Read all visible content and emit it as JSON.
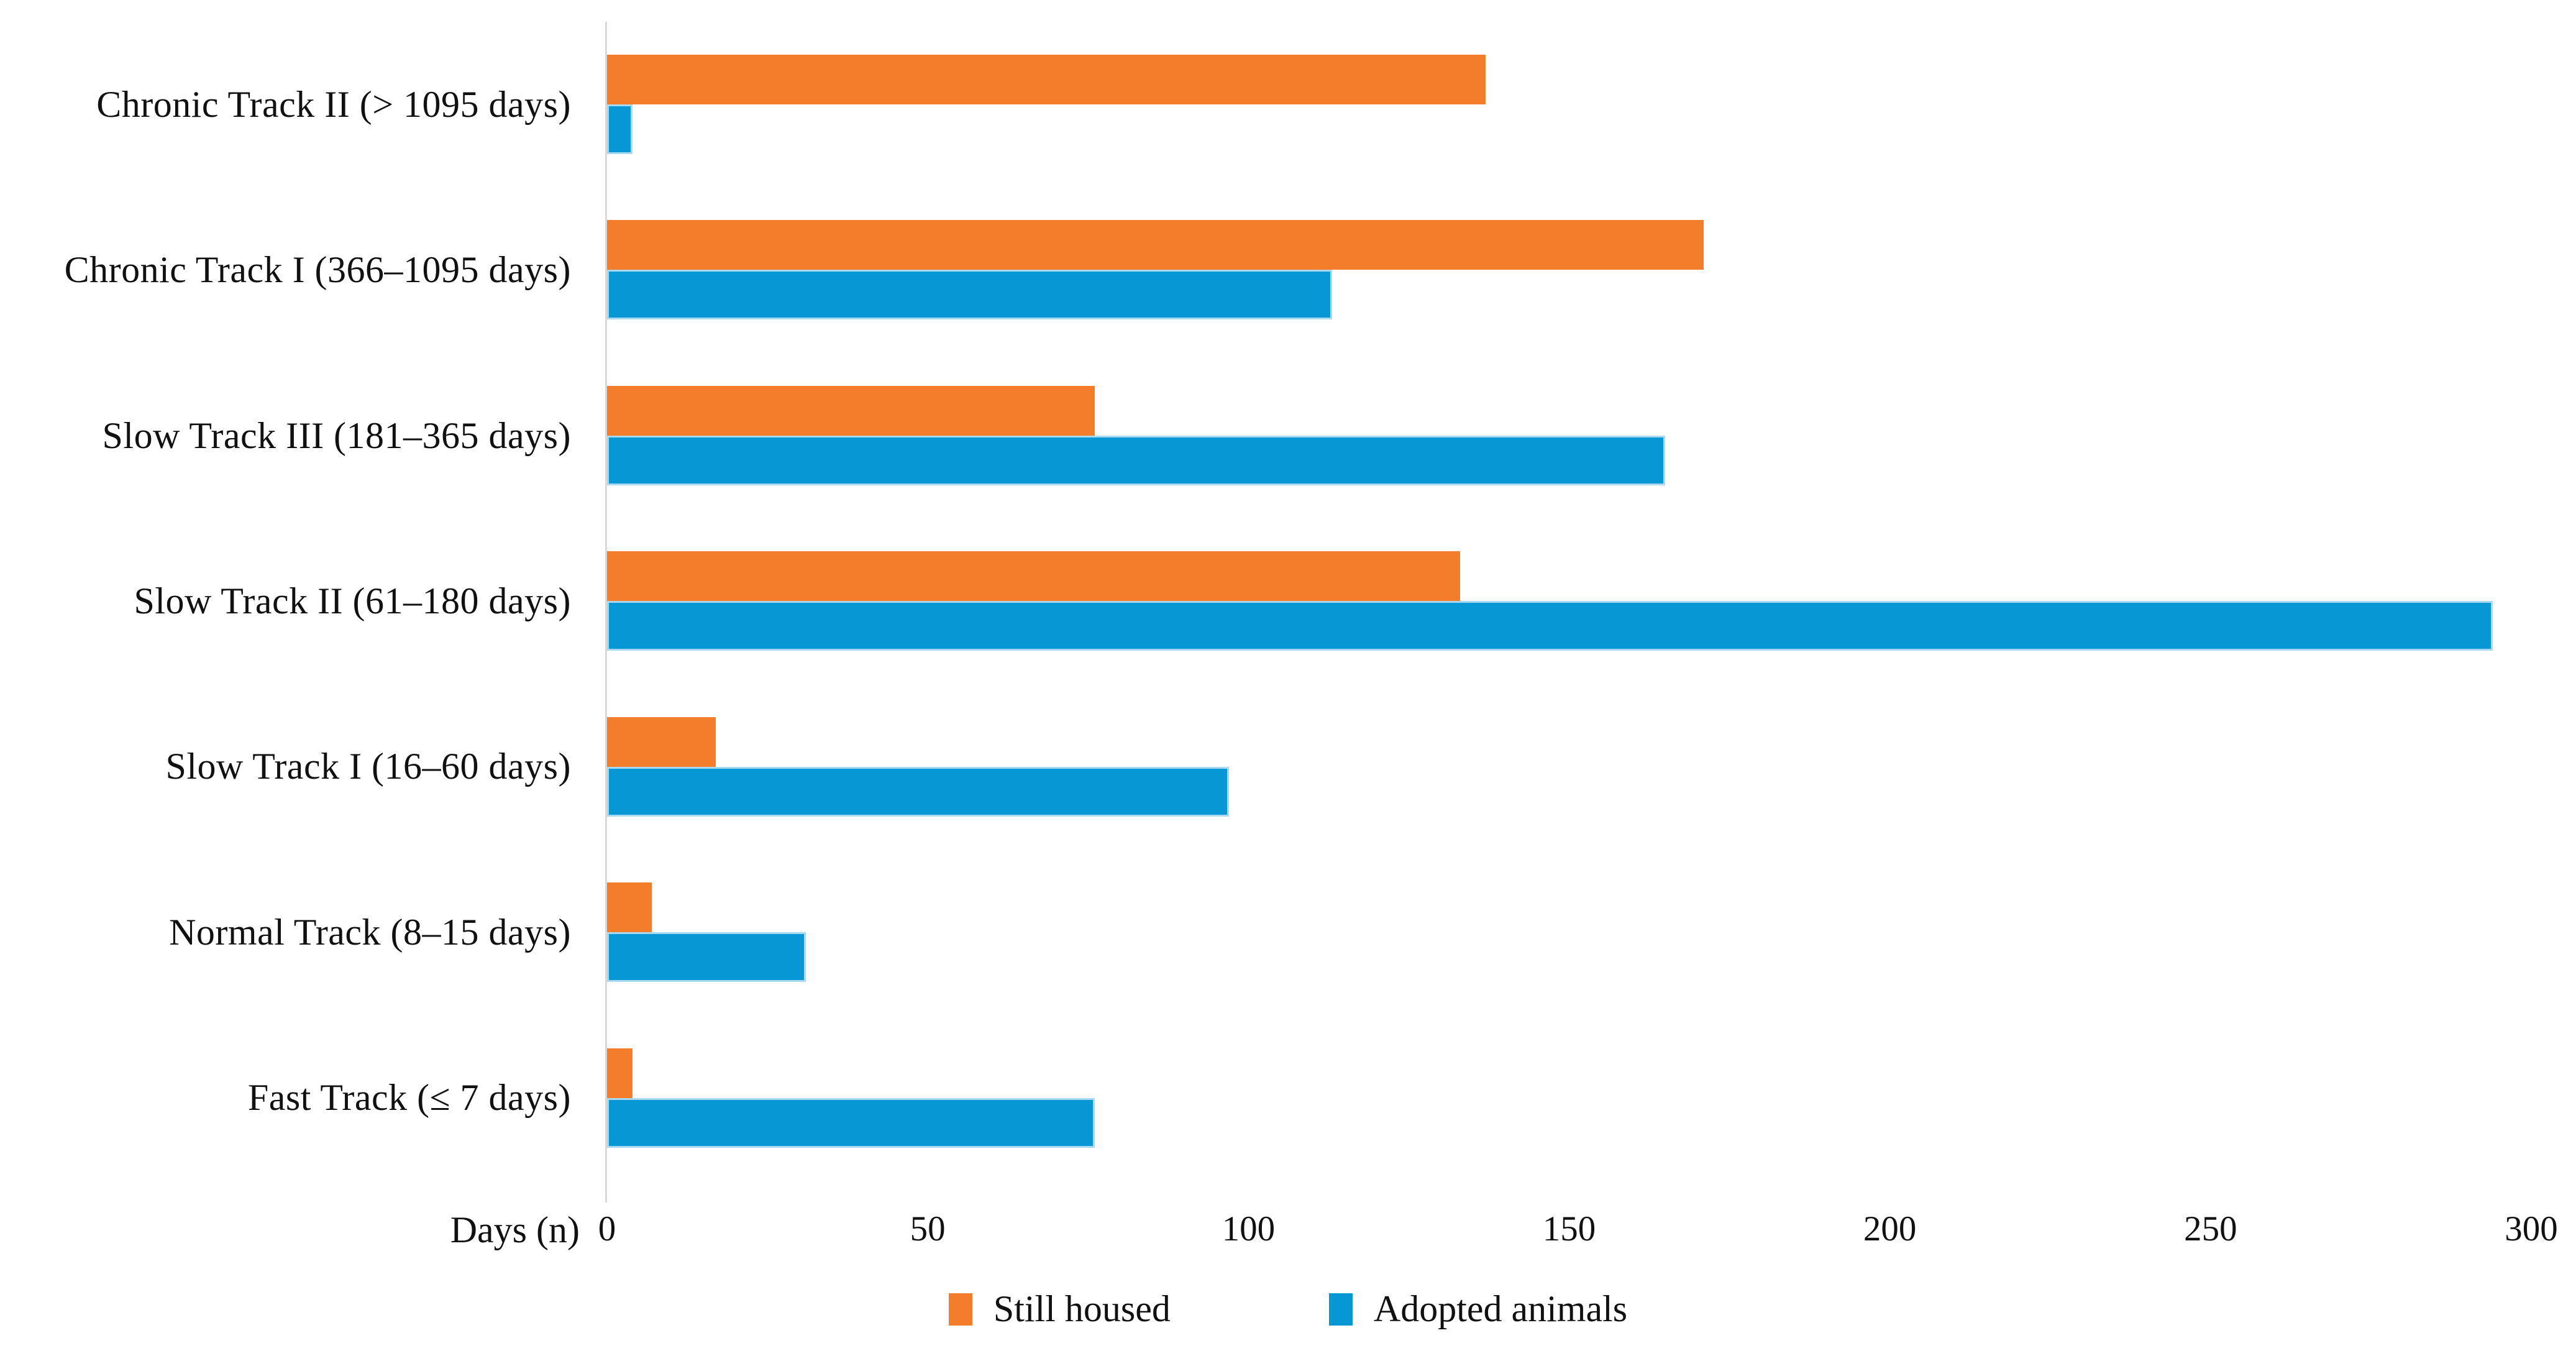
{
  "chart_data": {
    "type": "bar",
    "orientation": "horizontal",
    "title": "",
    "xlabel": "Days (n)",
    "ylabel": "",
    "xlim": [
      0,
      300
    ],
    "x_ticks": [
      0,
      50,
      100,
      150,
      200,
      250,
      300
    ],
    "grid": false,
    "legend_position": "bottom",
    "axis_color": "#d9d9d9",
    "categories": [
      "Chronic Track II (> 1095 days)",
      "Chronic Track I (366–1095 days)",
      "Slow Track III (181–365 days)",
      "Slow Track II (61–180 days)",
      "Slow Track I (16–60 days)",
      "Normal Track (8–15 days)",
      "Fast Track (≤ 7 days)"
    ],
    "series": [
      {
        "name": "Still housed",
        "color": "#f47d2b",
        "values": [
          137,
          171,
          76,
          133,
          17,
          7,
          4
        ]
      },
      {
        "name": "Adopted animals",
        "color": "#0697d4",
        "values": [
          4,
          113,
          165,
          294,
          97,
          31,
          76
        ]
      }
    ]
  }
}
